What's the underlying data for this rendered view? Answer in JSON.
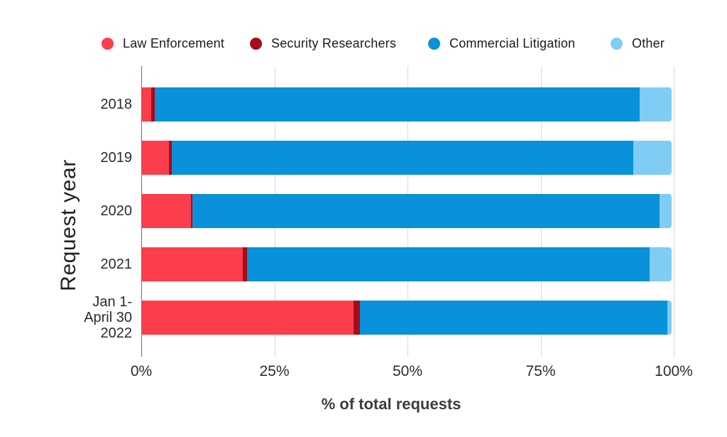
{
  "chart_data": {
    "type": "bar",
    "orientation": "horizontal",
    "stacked": true,
    "xlabel": "% of total requests",
    "ylabel": "Request year",
    "categories": [
      "2018",
      "2019",
      "2020",
      "2021",
      "Jan 1-\nApril 30\n2022"
    ],
    "series": [
      {
        "name": "Law Enforcement",
        "color": "#fc3d4c",
        "values": [
          1.7,
          5.1,
          9.3,
          19.1,
          39.9
        ]
      },
      {
        "name": "Security Researchers",
        "color": "#a50d1a",
        "values": [
          0.7,
          0.5,
          0.2,
          0.7,
          1.3
        ]
      },
      {
        "name": "Commercial Litigation",
        "color": "#0991d9",
        "values": [
          91.6,
          87.1,
          88.2,
          76.1,
          58.0
        ]
      },
      {
        "name": "Other",
        "color": "#7fcdf4",
        "values": [
          6.0,
          7.3,
          2.3,
          4.1,
          0.8
        ]
      }
    ],
    "x_ticks": [
      {
        "label": "0%",
        "value": 0
      },
      {
        "label": "25%",
        "value": 25
      },
      {
        "label": "50%",
        "value": 50
      },
      {
        "label": "75%",
        "value": 75
      },
      {
        "label": "100%",
        "value": 100
      }
    ],
    "xlim": [
      0,
      100
    ],
    "grid": true,
    "legend_position": "top"
  },
  "style_colors": {
    "gridline": "#d9d9d9",
    "axis_line": "#6f6f6f",
    "text": "#212121",
    "background": "#ffffff"
  }
}
